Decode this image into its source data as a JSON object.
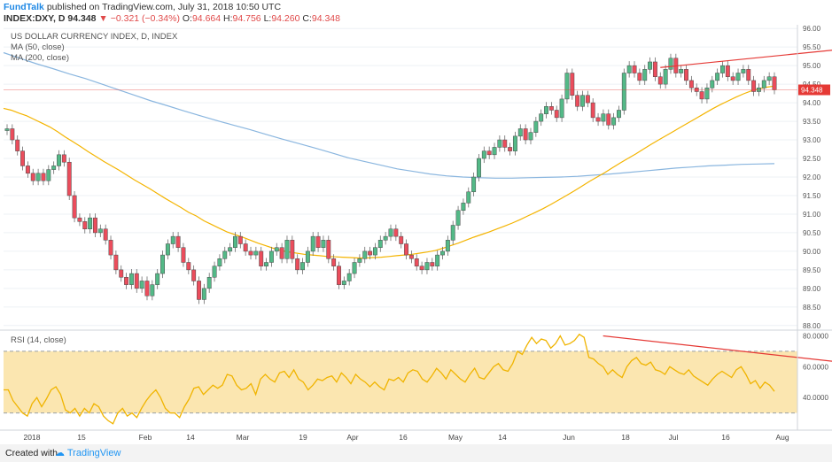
{
  "header": {
    "brand": "FundTalk",
    "published": "published on TradingView.com, July 31, 2018 10:50 UTC",
    "symbol": "INDEX:DXY, D",
    "last": "94.348",
    "change": "▼ −0.321 (−0.34%)",
    "o_label": "O:",
    "o": "94.664",
    "h_label": "H:",
    "h": "94.756",
    "l_label": "L:",
    "l": "94.260",
    "c_label": "C:",
    "c": "94.348"
  },
  "legend": {
    "title": "US DOLLAR CURRENCY INDEX, D, INDEX",
    "ma50": "MA (50, close)",
    "ma200": "MA (200, close)",
    "rsi": "RSI (14, close)"
  },
  "footer": {
    "created": "Created with",
    "logo": "TradingView"
  },
  "colors": {
    "up": "#53b987",
    "down": "#eb4d5c",
    "ma50": "#f4b400",
    "ma200": "#8ab6df",
    "rsi_line": "#f0b400",
    "rsi_band": "#fbe6b0",
    "trend": "#e53935",
    "last_price": "#e53935"
  },
  "chart_data": [
    {
      "type": "candlestick",
      "title": "US DOLLAR CURRENCY INDEX, D, INDEX",
      "x_ticks": [
        "2018",
        "15",
        "Feb",
        "14",
        "Mar",
        "19",
        "Apr",
        "16",
        "May",
        "14",
        "Jun",
        "18",
        "Jul",
        "16",
        "Aug"
      ],
      "y_ticks": [
        "88.00",
        "88.50",
        "89.00",
        "89.50",
        "90.00",
        "90.50",
        "91.00",
        "91.50",
        "92.00",
        "92.50",
        "93.00",
        "93.50",
        "94.00",
        "94.50",
        "95.00",
        "95.50",
        "96.00"
      ],
      "ylim": [
        87.9,
        96.1
      ],
      "last_price": 94.348,
      "last_price_label": "94.348",
      "closes": [
        93.3,
        93.0,
        92.7,
        92.3,
        92.1,
        91.9,
        92.1,
        91.9,
        92.2,
        92.3,
        92.6,
        92.4,
        91.5,
        90.9,
        90.8,
        90.6,
        90.9,
        90.5,
        90.6,
        90.3,
        89.9,
        89.5,
        89.3,
        89.1,
        89.4,
        89.0,
        89.2,
        88.8,
        89.1,
        89.4,
        89.9,
        90.2,
        90.4,
        90.1,
        89.7,
        89.5,
        89.2,
        88.7,
        89.0,
        89.3,
        89.6,
        89.8,
        90.0,
        90.1,
        90.4,
        90.2,
        90.0,
        89.9,
        90.0,
        89.6,
        89.7,
        90.0,
        90.1,
        89.8,
        90.3,
        89.8,
        89.5,
        89.7,
        90.0,
        90.4,
        90.1,
        90.3,
        89.8,
        89.6,
        89.1,
        89.2,
        89.4,
        89.7,
        89.8,
        90.0,
        89.9,
        90.1,
        90.3,
        90.4,
        90.6,
        90.4,
        90.2,
        89.9,
        89.8,
        89.6,
        89.5,
        89.7,
        89.6,
        89.9,
        90.0,
        90.3,
        90.7,
        91.1,
        91.3,
        91.6,
        92.0,
        92.5,
        92.7,
        92.6,
        92.8,
        93.0,
        92.8,
        92.7,
        93.1,
        93.3,
        93.0,
        93.2,
        93.5,
        93.7,
        93.9,
        93.8,
        93.6,
        94.1,
        94.8,
        94.2,
        93.9,
        94.2,
        94.0,
        93.6,
        93.5,
        93.7,
        93.4,
        93.6,
        93.8,
        94.8,
        95.0,
        94.8,
        94.6,
        94.9,
        95.1,
        94.7,
        94.5,
        94.9,
        95.2,
        94.8,
        94.9,
        94.6,
        94.4,
        94.3,
        94.1,
        94.4,
        94.6,
        94.8,
        95.0,
        94.7,
        94.6,
        94.8,
        94.9,
        94.6,
        94.3,
        94.4,
        94.6,
        94.7,
        94.35
      ],
      "ma50": [
        93.85,
        93.8,
        93.72,
        93.65,
        93.55,
        93.45,
        93.35,
        93.22,
        93.08,
        92.95,
        92.82,
        92.68,
        92.55,
        92.42,
        92.3,
        92.18,
        92.05,
        91.92,
        91.8,
        91.68,
        91.55,
        91.42,
        91.3,
        91.18,
        91.05,
        90.95,
        90.82,
        90.72,
        90.62,
        90.52,
        90.45,
        90.38,
        90.3,
        90.22,
        90.15,
        90.08,
        90.02,
        89.98,
        89.95,
        89.92,
        89.9,
        89.88,
        89.86,
        89.85,
        89.84,
        89.83,
        89.82,
        89.82,
        89.83,
        89.84,
        89.86,
        89.88,
        89.9,
        89.92,
        89.95,
        89.98,
        90.02,
        90.08,
        90.15,
        90.22,
        90.3,
        90.38,
        90.45,
        90.52,
        90.6,
        90.68,
        90.76,
        90.85,
        90.95,
        91.05,
        91.15,
        91.26,
        91.38,
        91.5,
        91.62,
        91.75,
        91.88,
        92.0,
        92.12,
        92.25,
        92.38,
        92.5,
        92.62,
        92.75,
        92.88,
        93.0,
        93.12,
        93.24,
        93.36,
        93.48,
        93.6,
        93.72,
        93.84,
        93.95,
        94.05,
        94.15,
        94.24,
        94.32,
        94.38,
        94.42,
        94.45
      ],
      "ma200": [
        95.35,
        95.2,
        95.05,
        94.92,
        94.78,
        94.65,
        94.5,
        94.35,
        94.2,
        94.05,
        93.92,
        93.78,
        93.65,
        93.52,
        93.4,
        93.28,
        93.15,
        93.02,
        92.9,
        92.78,
        92.65,
        92.52,
        92.42,
        92.32,
        92.22,
        92.15,
        92.08,
        92.03,
        92.0,
        91.98,
        91.97,
        91.97,
        91.98,
        91.99,
        92.0,
        92.02,
        92.05,
        92.08,
        92.12,
        92.16,
        92.2,
        92.24,
        92.27,
        92.3,
        92.32,
        92.34,
        92.35,
        92.36
      ],
      "trend_line": [
        [
          126,
          94.95
        ],
        [
          183,
          95.75
        ]
      ]
    },
    {
      "type": "line",
      "title": "RSI (14, close)",
      "y_ticks": [
        "40.0000",
        "60.0000",
        "80.0000"
      ],
      "ylim": [
        20,
        82
      ],
      "band": [
        30,
        70
      ],
      "values": [
        45,
        45,
        38,
        34,
        30,
        28,
        36,
        40,
        34,
        39,
        45,
        47,
        42,
        32,
        30,
        33,
        28,
        33,
        30,
        36,
        34,
        28,
        25,
        23,
        30,
        33,
        28,
        30,
        27,
        33,
        38,
        42,
        45,
        40,
        33,
        30,
        30,
        27,
        34,
        39,
        46,
        47,
        42,
        45,
        48,
        46,
        48,
        55,
        54,
        48,
        45,
        46,
        49,
        42,
        52,
        55,
        52,
        50,
        56,
        57,
        53,
        58,
        52,
        50,
        45,
        48,
        52,
        51,
        53,
        54,
        50,
        56,
        53,
        49,
        55,
        52,
        50,
        47,
        50,
        47,
        45,
        52,
        51,
        53,
        50,
        56,
        58,
        57,
        52,
        50,
        54,
        59,
        56,
        52,
        58,
        55,
        52,
        50,
        55,
        59,
        53,
        52,
        56,
        60,
        62,
        58,
        57,
        62,
        70,
        68,
        74,
        79,
        75,
        78,
        77,
        72,
        75,
        80,
        74,
        75,
        77,
        81,
        79,
        66,
        65,
        62,
        60,
        55,
        58,
        55,
        53,
        60,
        64,
        66,
        62,
        61,
        63,
        58,
        57,
        55,
        60,
        58,
        56,
        55,
        58,
        54,
        52,
        50,
        48,
        52,
        55,
        57,
        55,
        53,
        58,
        60,
        55,
        49,
        51,
        46,
        50,
        48,
        44
      ],
      "trend_line": [
        [
          126,
          80
        ],
        [
          183,
          60.5
        ]
      ]
    }
  ]
}
